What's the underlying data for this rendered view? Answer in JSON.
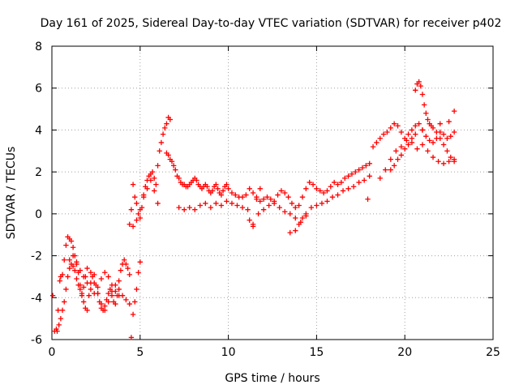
{
  "chart_data": {
    "type": "scatter",
    "title": "Day 161 of 2025, Sidereal Day-to-day VTEC variation (SDTVAR) for receiver p402",
    "xlabel": "GPS time / hours",
    "ylabel": "SDTVAR / TECUs",
    "xlim": [
      0,
      25
    ],
    "ylim": [
      -6,
      8
    ],
    "xticks": [
      0,
      5,
      10,
      15,
      20,
      25
    ],
    "yticks": [
      -6,
      -4,
      -2,
      0,
      2,
      4,
      6,
      8
    ],
    "grid": true,
    "marker": "+",
    "color": "#ff0000",
    "series": [
      {
        "name": "p402",
        "x": [
          0.05,
          0.15,
          0.25,
          0.35,
          0.45,
          0.5,
          0.6,
          0.7,
          0.8,
          0.9,
          1.0,
          1.1,
          1.2,
          1.3,
          1.4,
          1.5,
          1.6,
          1.7,
          1.8,
          1.9,
          2.0,
          2.1,
          2.2,
          2.3,
          2.4,
          2.5,
          2.6,
          2.7,
          2.8,
          2.9,
          3.0,
          3.1,
          3.2,
          3.3,
          3.4,
          3.5,
          3.6,
          3.7,
          3.8,
          3.9,
          4.0,
          4.1,
          4.2,
          4.3,
          4.4,
          4.5,
          4.6,
          4.7,
          4.8,
          4.9,
          5.0,
          0.3,
          0.4,
          0.5,
          0.6,
          0.7,
          0.8,
          0.9,
          1.0,
          1.1,
          1.2,
          1.3,
          1.4,
          1.5,
          1.6,
          1.7,
          1.8,
          1.9,
          2.0,
          2.2,
          2.4,
          2.6,
          2.8,
          3.0,
          3.2,
          3.4,
          3.6,
          3.8,
          4.0,
          4.2,
          4.4,
          1.0,
          1.2,
          1.4,
          1.6,
          1.8,
          2.0,
          2.2,
          2.4,
          2.6,
          2.8,
          3.0,
          3.2,
          3.4,
          3.6,
          3.8,
          4.4,
          4.5,
          4.6,
          4.7,
          4.8,
          4.9,
          5.0,
          5.1,
          5.2,
          5.3,
          5.4,
          5.5,
          5.6,
          5.7,
          5.8,
          5.9,
          6.0,
          6.1,
          6.2,
          6.3,
          6.4,
          6.5,
          6.6,
          6.7,
          4.6,
          4.8,
          5.0,
          5.2,
          5.4,
          5.6,
          5.8,
          6.0,
          6.5,
          6.6,
          6.7,
          6.8,
          6.9,
          7.0,
          7.1,
          7.2,
          7.3,
          7.4,
          7.5,
          7.6,
          7.7,
          7.8,
          7.9,
          8.0,
          8.1,
          8.2,
          8.3,
          8.4,
          8.5,
          8.6,
          8.7,
          8.8,
          8.9,
          9.0,
          9.1,
          9.2,
          9.3,
          9.4,
          9.5,
          9.6,
          9.7,
          9.8,
          9.9,
          10.0,
          10.2,
          10.4,
          10.6,
          10.8,
          11.0,
          11.2,
          11.4,
          11.6,
          11.8,
          12.0,
          12.2,
          12.4,
          12.6,
          12.8,
          13.0,
          13.2,
          13.4,
          13.6,
          13.8,
          14.0,
          14.2,
          14.4,
          14.6,
          14.8,
          15.0,
          15.2,
          15.4,
          15.6,
          15.8,
          16.0,
          16.2,
          16.4,
          16.6,
          16.8,
          17.0,
          17.2,
          17.4,
          17.6,
          17.8,
          18.0,
          7.2,
          7.5,
          7.8,
          8.1,
          8.4,
          8.7,
          9.0,
          9.3,
          9.6,
          9.9,
          10.2,
          10.5,
          10.8,
          11.1,
          11.4,
          11.7,
          12.0,
          12.3,
          12.6,
          12.9,
          13.2,
          13.5,
          13.8,
          14.1,
          14.4,
          14.7,
          15.0,
          15.3,
          15.6,
          15.9,
          16.2,
          16.5,
          16.8,
          17.1,
          17.4,
          17.7,
          18.0,
          11.2,
          11.4,
          11.6,
          11.8,
          13.5,
          13.8,
          14.0,
          14.2,
          14.4,
          17.9,
          18.2,
          18.4,
          18.6,
          18.8,
          19.0,
          19.2,
          19.4,
          19.6,
          19.8,
          20.0,
          20.2,
          20.4,
          20.6,
          20.8,
          21.0,
          21.2,
          21.4,
          21.6,
          21.8,
          22.0,
          22.2,
          22.4,
          22.6,
          22.8,
          18.6,
          18.9,
          19.2,
          19.5,
          19.8,
          20.1,
          20.4,
          20.7,
          21.0,
          21.3,
          21.6,
          21.9,
          22.2,
          22.5,
          22.8,
          20.6,
          20.7,
          20.8,
          20.9,
          21.0,
          21.1,
          21.2,
          21.3,
          21.4,
          21.6,
          21.8,
          22.0,
          22.2,
          22.4,
          22.6,
          22.8,
          19.2,
          19.4,
          19.6,
          19.8,
          20.0,
          20.2,
          20.4,
          20.6,
          21.0,
          21.5,
          22.0,
          22.5,
          22.8
        ],
        "y": [
          -3.9,
          -5.6,
          -5.5,
          -4.6,
          -3.2,
          -3.0,
          -2.9,
          -2.2,
          -1.5,
          -1.1,
          -1.2,
          -1.3,
          -1.6,
          -2.0,
          -2.4,
          -2.8,
          -3.4,
          -3.9,
          -4.2,
          -4.5,
          -4.6,
          -3.9,
          -3.3,
          -3.0,
          -2.9,
          -3.4,
          -3.8,
          -4.2,
          -4.5,
          -4.6,
          -4.4,
          -4.1,
          -3.8,
          -3.6,
          -3.9,
          -4.2,
          -4.3,
          -3.9,
          -3.2,
          -2.7,
          -2.4,
          -2.2,
          -2.4,
          -2.6,
          -2.9,
          -5.9,
          -4.8,
          -4.2,
          -3.6,
          -2.8,
          -2.3,
          -5.6,
          -5.3,
          -5.0,
          -4.6,
          -4.2,
          -3.6,
          -3.0,
          -2.6,
          -2.4,
          -2.5,
          -2.7,
          -3.1,
          -3.4,
          -3.6,
          -3.8,
          -3.5,
          -3.0,
          -2.6,
          -2.8,
          -3.3,
          -3.8,
          -4.3,
          -4.6,
          -4.2,
          -3.7,
          -3.4,
          -3.6,
          -3.9,
          -4.1,
          -4.3,
          -2.2,
          -2.0,
          -2.3,
          -2.7,
          -3.0,
          -3.3,
          -3.6,
          -3.8,
          -3.5,
          -3.1,
          -2.8,
          -3.0,
          -3.4,
          -3.7,
          -3.9,
          -0.5,
          0.2,
          1.4,
          0.8,
          0.5,
          0.0,
          -0.2,
          0.3,
          0.9,
          1.3,
          1.6,
          1.8,
          1.9,
          2.0,
          1.7,
          1.4,
          2.3,
          3.0,
          3.4,
          3.8,
          4.1,
          4.3,
          4.6,
          4.5,
          -0.6,
          -0.3,
          0.2,
          0.8,
          1.2,
          1.6,
          1.1,
          0.5,
          2.9,
          2.8,
          2.6,
          2.5,
          2.3,
          2.1,
          1.8,
          1.7,
          1.5,
          1.4,
          1.4,
          1.3,
          1.3,
          1.4,
          1.5,
          1.6,
          1.7,
          1.6,
          1.4,
          1.3,
          1.2,
          1.3,
          1.4,
          1.3,
          1.1,
          1.0,
          1.1,
          1.3,
          1.4,
          1.2,
          1.0,
          0.9,
          1.1,
          1.3,
          1.4,
          1.2,
          1.0,
          0.9,
          0.8,
          0.8,
          0.9,
          1.2,
          1.0,
          0.7,
          0.6,
          0.7,
          0.8,
          0.7,
          0.6,
          0.9,
          1.1,
          1.0,
          0.8,
          0.5,
          0.3,
          0.4,
          0.8,
          1.2,
          1.5,
          1.4,
          1.2,
          1.1,
          1.0,
          1.1,
          1.3,
          1.5,
          1.4,
          1.5,
          1.7,
          1.8,
          1.9,
          2.0,
          2.1,
          2.2,
          2.3,
          2.4,
          0.3,
          0.2,
          0.3,
          0.2,
          0.4,
          0.5,
          0.3,
          0.5,
          0.4,
          0.6,
          0.5,
          0.4,
          0.3,
          0.2,
          -0.5,
          0.0,
          0.2,
          0.4,
          0.5,
          0.3,
          0.1,
          0.0,
          -0.2,
          -0.4,
          0.0,
          0.3,
          0.4,
          0.5,
          0.6,
          0.8,
          0.9,
          1.1,
          1.2,
          1.3,
          1.5,
          1.6,
          1.8,
          -0.3,
          -0.6,
          0.8,
          1.2,
          -0.9,
          -0.8,
          -0.5,
          -0.2,
          -0.1,
          0.7,
          3.2,
          3.4,
          3.6,
          3.8,
          3.9,
          4.1,
          4.3,
          4.2,
          3.9,
          3.6,
          3.8,
          4.0,
          4.2,
          4.3,
          4.0,
          3.7,
          3.5,
          3.4,
          3.6,
          3.9,
          3.8,
          3.6,
          3.7,
          3.9,
          1.7,
          2.1,
          2.6,
          3.0,
          3.2,
          3.5,
          3.4,
          3.1,
          3.3,
          3.0,
          2.7,
          2.5,
          2.4,
          2.5,
          2.6,
          5.9,
          6.2,
          6.3,
          6.1,
          5.7,
          5.2,
          4.8,
          4.5,
          4.3,
          4.1,
          3.9,
          3.6,
          3.3,
          3.0,
          2.7,
          2.5,
          2.1,
          2.3,
          2.6,
          2.8,
          3.1,
          3.3,
          3.6,
          3.8,
          4.0,
          4.2,
          4.3,
          4.4,
          4.9
        ]
      }
    ]
  }
}
